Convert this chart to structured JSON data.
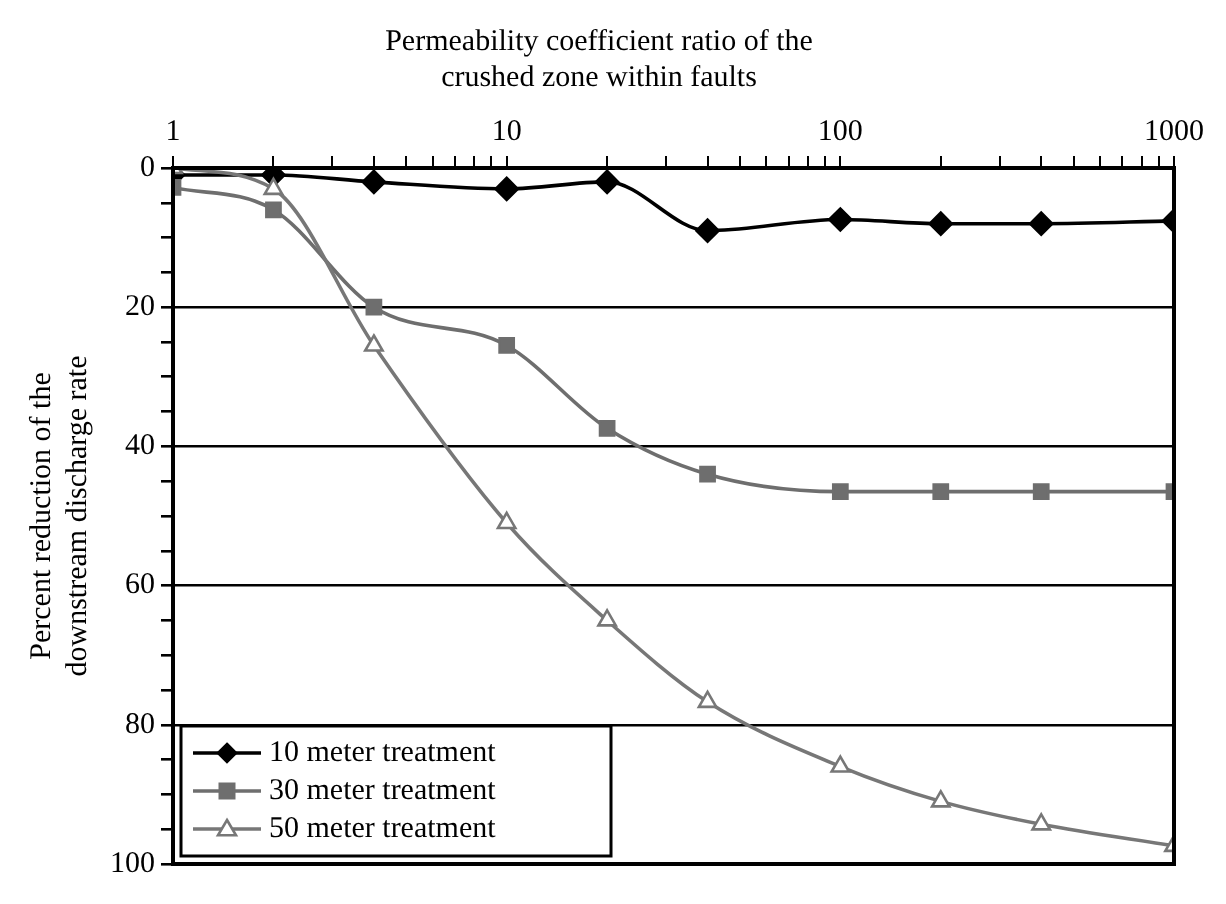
{
  "chart_data": {
    "type": "line",
    "xlabel": "Permeability coefficient ratio of the\ncrushed zone within faults",
    "ylabel": "Percent reduction of the\ndownstream discharge rate",
    "x": [
      1,
      2,
      4,
      10,
      20,
      40,
      100,
      200,
      400,
      1000
    ],
    "log": "x",
    "xlim": [
      1,
      1000
    ],
    "xticks": [
      1,
      {
        "value": 2,
        "label": null
      },
      {
        "value": 3,
        "label": null
      },
      {
        "value": 4,
        "label": null
      },
      {
        "value": 5,
        "label": null
      },
      {
        "value": 6,
        "label": null
      },
      {
        "value": 7,
        "label": null
      },
      {
        "value": 8,
        "label": null
      },
      {
        "value": 9,
        "label": null
      },
      10,
      {
        "value": 20,
        "label": null
      },
      {
        "value": 30,
        "label": null
      },
      {
        "value": 40,
        "label": null
      },
      {
        "value": 50,
        "label": null
      },
      {
        "value": 60,
        "label": null
      },
      {
        "value": 70,
        "label": null
      },
      {
        "value": 80,
        "label": null
      },
      {
        "value": 90,
        "label": null
      },
      100,
      {
        "value": 200,
        "label": null
      },
      {
        "value": 300,
        "label": null
      },
      {
        "value": 400,
        "label": null
      },
      {
        "value": 500,
        "label": null
      },
      {
        "value": 600,
        "label": null
      },
      {
        "value": 700,
        "label": null
      },
      {
        "value": 800,
        "label": null
      },
      {
        "value": 900,
        "label": null
      },
      1000
    ],
    "ylim": [
      100,
      0
    ],
    "yticks": [
      0,
      {
        "value": 5,
        "label": null
      },
      {
        "value": 10,
        "label": null
      },
      {
        "value": 15,
        "label": null
      },
      20,
      {
        "value": 25,
        "label": null
      },
      {
        "value": 30,
        "label": null
      },
      {
        "value": 35,
        "label": null
      },
      40,
      {
        "value": 45,
        "label": null
      },
      {
        "value": 50,
        "label": null
      },
      {
        "value": 55,
        "label": null
      },
      60,
      {
        "value": 65,
        "label": null
      },
      {
        "value": 70,
        "label": null
      },
      {
        "value": 75,
        "label": null
      },
      80,
      {
        "value": 85,
        "label": null
      },
      {
        "value": 90,
        "label": null
      },
      {
        "value": 95,
        "label": null
      },
      100
    ],
    "grid": "y",
    "legend": "bottom left",
    "line_style": "solid",
    "series": [
      {
        "name": "10 meter treatment",
        "color": "#000000",
        "marker": "diamond",
        "values": [
          1,
          1,
          2,
          3,
          2,
          9,
          7.4,
          8,
          8,
          7.6
        ]
      },
      {
        "name": "30 meter treatment",
        "color": "#6e6e6e",
        "marker": "square",
        "values": [
          2.8,
          6,
          20,
          25.5,
          37.4,
          44,
          46.5,
          46.5,
          46.5,
          46.5
        ]
      },
      {
        "name": "50 meter treatment",
        "color": "#777777",
        "marker": "triangle",
        "values": [
          0,
          3,
          25.5,
          51,
          65,
          76.7,
          86,
          91,
          94.3,
          97.4
        ]
      }
    ]
  }
}
